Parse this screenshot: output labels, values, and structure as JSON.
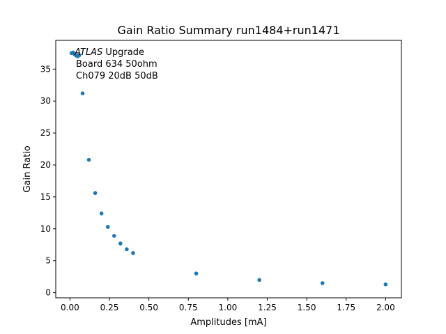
{
  "chart_data": {
    "type": "scatter",
    "title": "Gain Ratio Summary run1484+run1471",
    "xlabel": "Amplitudes [mA]",
    "ylabel": "Gain Ratio",
    "xlim": [
      -0.09,
      2.1
    ],
    "ylim": [
      -0.8,
      39.5
    ],
    "xticks": [
      0.0,
      0.25,
      0.5,
      0.75,
      1.0,
      1.25,
      1.5,
      1.75,
      2.0
    ],
    "xtick_labels": [
      "0.00",
      "0.25",
      "0.50",
      "0.75",
      "1.00",
      "1.25",
      "1.50",
      "1.75",
      "2.00"
    ],
    "yticks": [
      0,
      5,
      10,
      15,
      20,
      25,
      30,
      35
    ],
    "ytick_labels": [
      "0",
      "5",
      "10",
      "15",
      "20",
      "25",
      "30",
      "35"
    ],
    "grid": false,
    "marker_color": "#1f77b4",
    "annotation": {
      "atlas": "ATLAS",
      "upgrade": " Upgrade",
      "line2": "Board 634 50ohm",
      "line3": "Ch079 20dB 50dB"
    },
    "series": [
      {
        "x": [
          0.01,
          0.02,
          0.03,
          0.04,
          0.05,
          0.06,
          0.08,
          0.12,
          0.16,
          0.2,
          0.24,
          0.28,
          0.32,
          0.36,
          0.4,
          0.8,
          1.2,
          1.6,
          2.0
        ],
        "y": [
          37.5,
          37.6,
          37.3,
          37.1,
          37.0,
          37.2,
          31.2,
          20.8,
          15.6,
          12.4,
          10.3,
          8.9,
          7.7,
          6.8,
          6.2,
          3.0,
          2.0,
          1.5,
          1.3
        ]
      }
    ]
  }
}
